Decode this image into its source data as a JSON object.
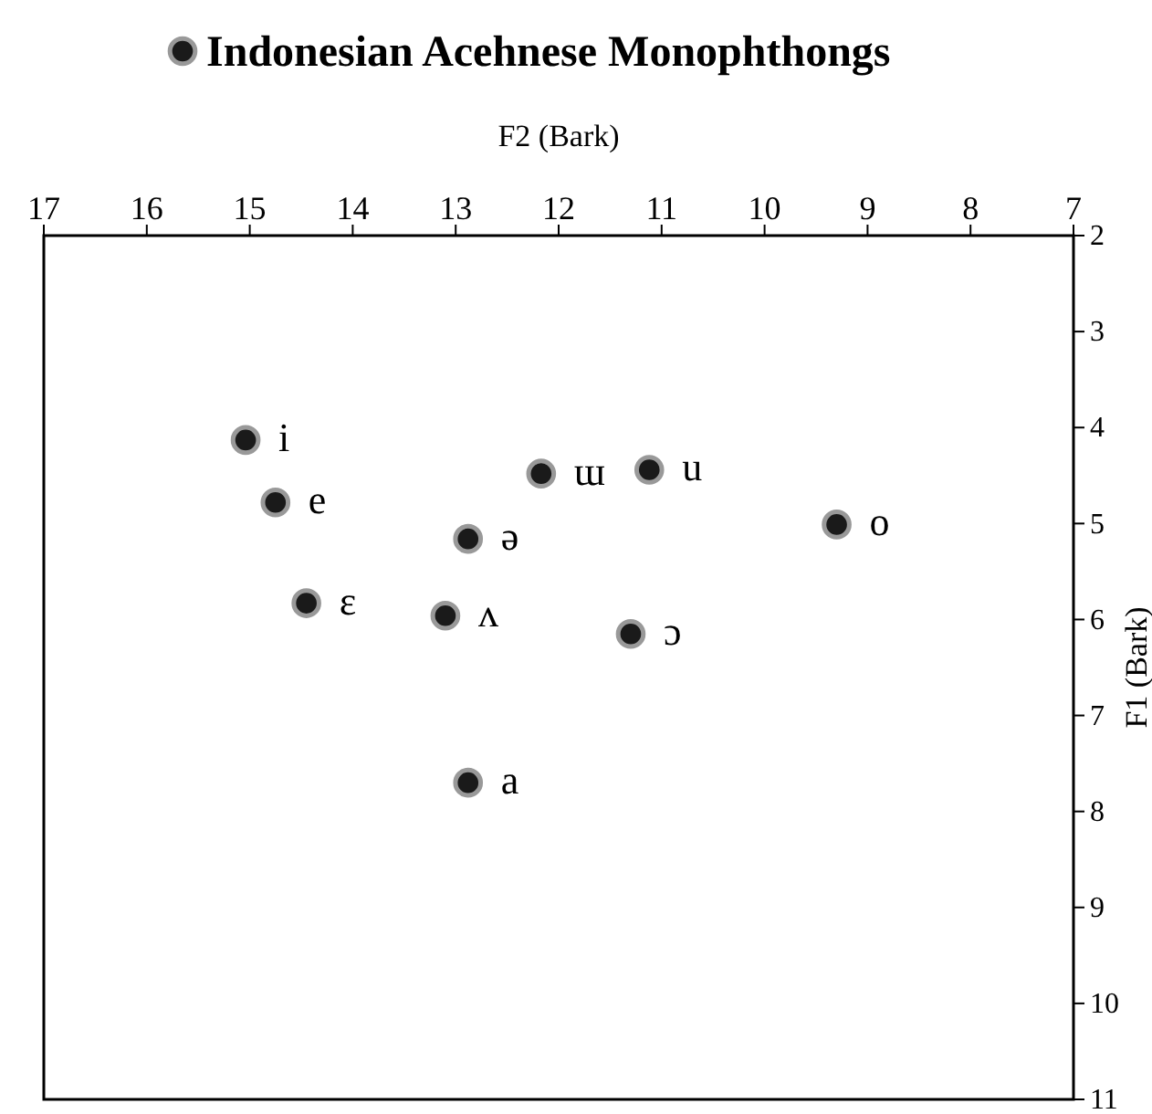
{
  "chart_data": {
    "type": "scatter",
    "xlabel": "F2 (Bark)",
    "ylabel": "F1 (Bark)",
    "xlim": [
      17,
      7
    ],
    "xticks": [
      17,
      16,
      15,
      14,
      13,
      12,
      11,
      10,
      9,
      8,
      7
    ],
    "ylim": [
      11,
      2
    ],
    "yticks": [
      2,
      3,
      4,
      5,
      6,
      7,
      8,
      9,
      10,
      11
    ],
    "x": [
      15.04,
      14.75,
      14.45,
      12.88,
      13.1,
      12.88,
      12.17,
      11.12,
      11.3,
      9.3
    ],
    "series": [
      {
        "name": "Indonesian Acehnese Monophthongs",
        "color": "#1a1a1a",
        "values": [
          4.13,
          4.78,
          5.83,
          5.16,
          5.96,
          7.7,
          4.48,
          4.44,
          6.15,
          5.01
        ]
      }
    ],
    "marker": "circle",
    "grid": false,
    "legend": "top",
    "annotations": [
      {
        "text": "i",
        "x": 15.04,
        "y": 4.13
      },
      {
        "text": "e",
        "x": 14.75,
        "y": 4.78
      },
      {
        "text": "ɛ",
        "x": 14.45,
        "y": 5.83
      },
      {
        "text": "ə",
        "x": 12.88,
        "y": 5.16
      },
      {
        "text": "ʌ",
        "x": 13.1,
        "y": 5.96
      },
      {
        "text": "a",
        "x": 12.88,
        "y": 7.7
      },
      {
        "text": "ɯ",
        "x": 12.17,
        "y": 4.48
      },
      {
        "text": "u",
        "x": 11.12,
        "y": 4.44
      },
      {
        "text": "ɔ",
        "x": 11.3,
        "y": 6.15
      },
      {
        "text": "o",
        "x": 9.3,
        "y": 5.01
      }
    ]
  }
}
